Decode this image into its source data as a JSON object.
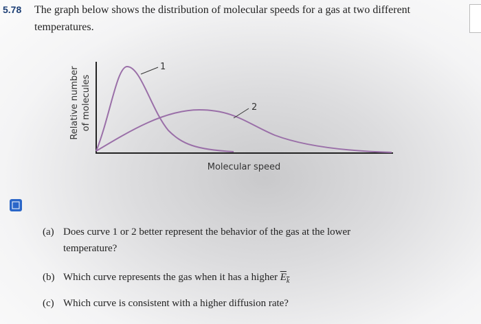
{
  "problem": {
    "number": "5.78",
    "text_line1": "The graph below shows the distribution of molecular speeds for a gas at two different",
    "text_line2": "temperatures."
  },
  "figure": {
    "y_label_line1": "Relative number",
    "y_label_line2": "of molecules",
    "x_label": "Molecular speed",
    "curve1_label": "1",
    "curve2_label": "2"
  },
  "questions": [
    {
      "label": "(a)",
      "line1": "Does curve 1 or 2 better represent the behavior of the gas at the lower",
      "line2": "temperature?"
    },
    {
      "label": "(b)",
      "text": "Which curve represents the gas when it has a higher",
      "symbol": "E",
      "subscript": "k"
    },
    {
      "label": "(c)",
      "text": "Which curve is consistent with a higher diffusion rate?"
    }
  ]
}
